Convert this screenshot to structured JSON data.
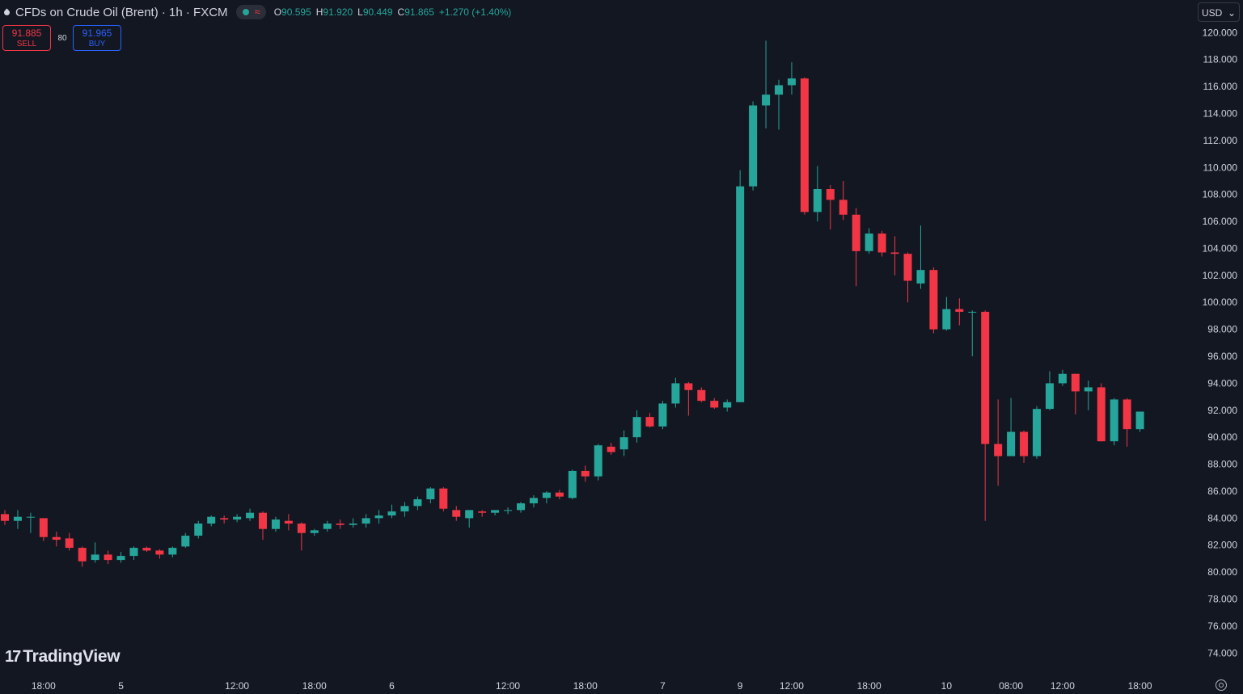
{
  "header": {
    "title": "CFDs on Crude Oil (Brent) · 1h · FXCM",
    "ohlc": [
      {
        "key": "O",
        "value": "90.595"
      },
      {
        "key": "H",
        "value": "91.920"
      },
      {
        "key": "L",
        "value": "90.449"
      },
      {
        "key": "C",
        "value": "91.865"
      }
    ],
    "change": "+1.270 (+1.40%)"
  },
  "trade": {
    "sell_price": "91.885",
    "sell_label": "SELL",
    "spread": "80",
    "buy_price": "91.965",
    "buy_label": "BUY"
  },
  "currency": {
    "value": "USD",
    "caret": "⌄"
  },
  "logo": {
    "mark": "17",
    "text": "TradingView"
  },
  "colors": {
    "background": "#131722",
    "up": "#26a69a",
    "down": "#f23645",
    "text": "#d1d4dc",
    "axis_text": "#d1d4dc"
  },
  "chart_data": {
    "type": "candlestick",
    "y_axis_labels": [
      "74.000",
      "76.000",
      "78.000",
      "80.000",
      "82.000",
      "84.000",
      "86.000",
      "88.000",
      "90.000",
      "92.000",
      "94.000",
      "96.000",
      "98.000",
      "100.000",
      "102.000",
      "104.000",
      "106.000",
      "108.000",
      "110.000",
      "112.000",
      "114.000",
      "116.000",
      "118.000",
      "120.000"
    ],
    "ylim": [
      73.0,
      120.5
    ],
    "x_tick_labels": [
      {
        "label": "18:00",
        "index": 3
      },
      {
        "label": "5",
        "index": 9
      },
      {
        "label": "12:00",
        "index": 18
      },
      {
        "label": "18:00",
        "index": 24
      },
      {
        "label": "6",
        "index": 30
      },
      {
        "label": "12:00",
        "index": 39
      },
      {
        "label": "18:00",
        "index": 45
      },
      {
        "label": "7",
        "index": 51
      },
      {
        "label": "9",
        "index": 57
      },
      {
        "label": "12:00",
        "index": 61
      },
      {
        "label": "18:00",
        "index": 67
      },
      {
        "label": "10",
        "index": 73
      },
      {
        "label": "08:00",
        "index": 78
      },
      {
        "label": "12:00",
        "index": 82
      },
      {
        "label": "18:00",
        "index": 88
      }
    ],
    "candles": [
      {
        "o": 84.3,
        "h": 84.6,
        "l": 83.5,
        "c": 83.8
      },
      {
        "o": 83.8,
        "h": 84.6,
        "l": 83.2,
        "c": 84.1
      },
      {
        "o": 84.1,
        "h": 84.4,
        "l": 82.9,
        "c": 84.1
      },
      {
        "o": 84.0,
        "h": 84.0,
        "l": 82.3,
        "c": 82.6
      },
      {
        "o": 82.6,
        "h": 83.0,
        "l": 81.9,
        "c": 82.4
      },
      {
        "o": 82.5,
        "h": 82.9,
        "l": 81.6,
        "c": 81.8
      },
      {
        "o": 81.8,
        "h": 81.9,
        "l": 80.4,
        "c": 80.8
      },
      {
        "o": 80.9,
        "h": 82.2,
        "l": 80.7,
        "c": 81.3
      },
      {
        "o": 81.3,
        "h": 81.6,
        "l": 80.6,
        "c": 80.9
      },
      {
        "o": 80.9,
        "h": 81.5,
        "l": 80.7,
        "c": 81.2
      },
      {
        "o": 81.2,
        "h": 81.9,
        "l": 80.9,
        "c": 81.8
      },
      {
        "o": 81.8,
        "h": 81.9,
        "l": 81.5,
        "c": 81.6
      },
      {
        "o": 81.6,
        "h": 81.7,
        "l": 81.0,
        "c": 81.3
      },
      {
        "o": 81.3,
        "h": 81.9,
        "l": 81.1,
        "c": 81.8
      },
      {
        "o": 81.9,
        "h": 82.9,
        "l": 81.8,
        "c": 82.7
      },
      {
        "o": 82.7,
        "h": 83.8,
        "l": 82.5,
        "c": 83.6
      },
      {
        "o": 83.6,
        "h": 84.2,
        "l": 83.4,
        "c": 84.1
      },
      {
        "o": 84.0,
        "h": 84.2,
        "l": 83.6,
        "c": 83.9
      },
      {
        "o": 83.9,
        "h": 84.3,
        "l": 83.7,
        "c": 84.1
      },
      {
        "o": 84.0,
        "h": 84.7,
        "l": 83.8,
        "c": 84.4
      },
      {
        "o": 84.4,
        "h": 84.5,
        "l": 82.4,
        "c": 83.2
      },
      {
        "o": 83.2,
        "h": 84.1,
        "l": 83.0,
        "c": 83.9
      },
      {
        "o": 83.8,
        "h": 84.3,
        "l": 83.1,
        "c": 83.6
      },
      {
        "o": 83.6,
        "h": 83.7,
        "l": 81.6,
        "c": 82.9
      },
      {
        "o": 82.9,
        "h": 83.2,
        "l": 82.7,
        "c": 83.1
      },
      {
        "o": 83.2,
        "h": 83.8,
        "l": 83.0,
        "c": 83.6
      },
      {
        "o": 83.6,
        "h": 83.9,
        "l": 83.2,
        "c": 83.5
      },
      {
        "o": 83.5,
        "h": 84.0,
        "l": 83.3,
        "c": 83.6
      },
      {
        "o": 83.6,
        "h": 84.3,
        "l": 83.3,
        "c": 84.0
      },
      {
        "o": 84.0,
        "h": 84.6,
        "l": 83.6,
        "c": 84.2
      },
      {
        "o": 84.2,
        "h": 85.0,
        "l": 84.0,
        "c": 84.5
      },
      {
        "o": 84.5,
        "h": 85.2,
        "l": 84.1,
        "c": 84.9
      },
      {
        "o": 84.9,
        "h": 85.6,
        "l": 84.6,
        "c": 85.4
      },
      {
        "o": 85.4,
        "h": 86.3,
        "l": 85.1,
        "c": 86.2
      },
      {
        "o": 86.2,
        "h": 86.3,
        "l": 84.5,
        "c": 84.7
      },
      {
        "o": 84.6,
        "h": 84.9,
        "l": 83.8,
        "c": 84.1
      },
      {
        "o": 84.0,
        "h": 84.6,
        "l": 83.3,
        "c": 84.6
      },
      {
        "o": 84.5,
        "h": 84.6,
        "l": 84.1,
        "c": 84.4
      },
      {
        "o": 84.4,
        "h": 84.6,
        "l": 84.2,
        "c": 84.6
      },
      {
        "o": 84.6,
        "h": 84.8,
        "l": 84.3,
        "c": 84.6
      },
      {
        "o": 84.6,
        "h": 85.2,
        "l": 84.4,
        "c": 85.1
      },
      {
        "o": 85.1,
        "h": 85.7,
        "l": 84.8,
        "c": 85.5
      },
      {
        "o": 85.5,
        "h": 86.0,
        "l": 85.1,
        "c": 85.9
      },
      {
        "o": 85.9,
        "h": 86.1,
        "l": 85.4,
        "c": 85.6
      },
      {
        "o": 85.5,
        "h": 87.6,
        "l": 85.4,
        "c": 87.5
      },
      {
        "o": 87.5,
        "h": 87.9,
        "l": 86.7,
        "c": 87.1
      },
      {
        "o": 87.1,
        "h": 89.5,
        "l": 86.8,
        "c": 89.4
      },
      {
        "o": 89.3,
        "h": 89.6,
        "l": 88.7,
        "c": 88.9
      },
      {
        "o": 89.1,
        "h": 90.5,
        "l": 88.6,
        "c": 90.0
      },
      {
        "o": 90.0,
        "h": 92.0,
        "l": 89.6,
        "c": 91.5
      },
      {
        "o": 91.5,
        "h": 91.8,
        "l": 90.7,
        "c": 90.8
      },
      {
        "o": 90.8,
        "h": 92.7,
        "l": 90.6,
        "c": 92.5
      },
      {
        "o": 92.5,
        "h": 94.4,
        "l": 92.2,
        "c": 94.0
      },
      {
        "o": 94.0,
        "h": 94.1,
        "l": 91.6,
        "c": 93.5
      },
      {
        "o": 93.5,
        "h": 93.7,
        "l": 92.6,
        "c": 92.7
      },
      {
        "o": 92.7,
        "h": 92.9,
        "l": 92.1,
        "c": 92.2
      },
      {
        "o": 92.2,
        "h": 92.8,
        "l": 91.9,
        "c": 92.6
      },
      {
        "o": 92.6,
        "h": 109.8,
        "l": 92.6,
        "c": 108.6
      },
      {
        "o": 108.6,
        "h": 114.9,
        "l": 108.3,
        "c": 114.6
      },
      {
        "o": 114.6,
        "h": 119.4,
        "l": 112.9,
        "c": 115.4
      },
      {
        "o": 115.4,
        "h": 116.5,
        "l": 112.8,
        "c": 116.1
      },
      {
        "o": 116.1,
        "h": 117.8,
        "l": 115.4,
        "c": 116.6
      },
      {
        "o": 116.6,
        "h": 116.7,
        "l": 106.5,
        "c": 106.7
      },
      {
        "o": 106.7,
        "h": 110.1,
        "l": 106.0,
        "c": 108.4
      },
      {
        "o": 108.4,
        "h": 108.7,
        "l": 105.4,
        "c": 107.6
      },
      {
        "o": 107.6,
        "h": 109.0,
        "l": 106.1,
        "c": 106.5
      },
      {
        "o": 106.5,
        "h": 107.0,
        "l": 101.2,
        "c": 103.8
      },
      {
        "o": 103.8,
        "h": 105.5,
        "l": 103.6,
        "c": 105.1
      },
      {
        "o": 105.1,
        "h": 105.3,
        "l": 103.4,
        "c": 103.7
      },
      {
        "o": 103.7,
        "h": 104.9,
        "l": 102.0,
        "c": 103.6
      },
      {
        "o": 103.6,
        "h": 103.7,
        "l": 100.0,
        "c": 101.6
      },
      {
        "o": 101.4,
        "h": 105.7,
        "l": 101.0,
        "c": 102.4
      },
      {
        "o": 102.4,
        "h": 102.6,
        "l": 97.7,
        "c": 98.0
      },
      {
        "o": 98.0,
        "h": 100.4,
        "l": 97.9,
        "c": 99.5
      },
      {
        "o": 99.5,
        "h": 100.3,
        "l": 98.3,
        "c": 99.3
      },
      {
        "o": 99.3,
        "h": 99.4,
        "l": 96.0,
        "c": 99.3
      },
      {
        "o": 99.3,
        "h": 99.4,
        "l": 83.8,
        "c": 89.5
      },
      {
        "o": 89.5,
        "h": 92.8,
        "l": 86.4,
        "c": 88.6
      },
      {
        "o": 88.6,
        "h": 92.9,
        "l": 88.6,
        "c": 90.4
      },
      {
        "o": 90.4,
        "h": 90.5,
        "l": 88.1,
        "c": 88.6
      },
      {
        "o": 88.6,
        "h": 92.3,
        "l": 88.4,
        "c": 92.1
      },
      {
        "o": 92.1,
        "h": 94.9,
        "l": 92.0,
        "c": 94.0
      },
      {
        "o": 94.0,
        "h": 95.0,
        "l": 93.8,
        "c": 94.7
      },
      {
        "o": 94.7,
        "h": 94.7,
        "l": 91.7,
        "c": 93.4
      },
      {
        "o": 93.4,
        "h": 94.2,
        "l": 92.0,
        "c": 93.7
      },
      {
        "o": 93.7,
        "h": 94.0,
        "l": 89.7,
        "c": 89.7
      },
      {
        "o": 89.7,
        "h": 92.9,
        "l": 89.4,
        "c": 92.8
      },
      {
        "o": 92.8,
        "h": 92.9,
        "l": 89.3,
        "c": 90.6
      },
      {
        "o": 90.6,
        "h": 91.9,
        "l": 90.4,
        "c": 91.9
      }
    ]
  }
}
